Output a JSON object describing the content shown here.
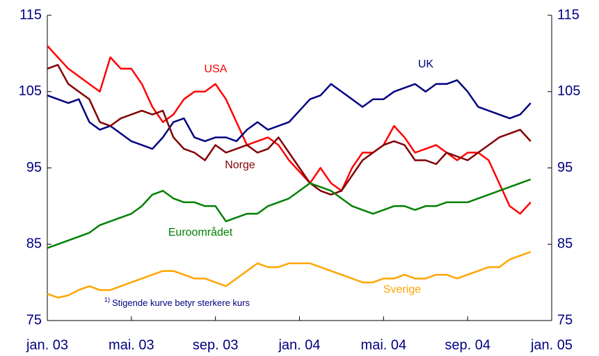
{
  "chart_data": {
    "type": "line",
    "x": [
      0,
      0.5,
      1,
      1.5,
      2,
      2.5,
      3,
      3.5,
      4,
      4.5,
      5,
      5.5,
      6,
      6.5,
      7,
      7.5,
      8,
      8.5,
      9,
      9.5,
      10,
      10.5,
      11,
      11.5,
      12,
      12.5,
      13,
      13.5,
      14,
      14.5,
      15,
      15.5,
      16,
      16.5,
      17,
      17.5,
      18,
      18.5,
      19,
      19.5,
      20,
      20.5,
      21,
      21.5,
      22,
      22.5,
      23
    ],
    "xlim": [
      0,
      24
    ],
    "xticks": [
      {
        "value": 0,
        "label": "jan. 03"
      },
      {
        "value": 4,
        "label": "mai. 03"
      },
      {
        "value": 8,
        "label": "sep. 03"
      },
      {
        "value": 12,
        "label": "jan. 04"
      },
      {
        "value": 16,
        "label": "mai. 04"
      },
      {
        "value": 20,
        "label": "sep. 04"
      },
      {
        "value": 24,
        "label": "jan. 05"
      }
    ],
    "ylim": [
      75,
      115
    ],
    "yticks": [
      75,
      85,
      95,
      105,
      115
    ],
    "y2lim": [
      75,
      115
    ],
    "y2ticks": [
      75,
      85,
      95,
      105,
      115
    ],
    "series": [
      {
        "name": "USA",
        "color": "#ff0000",
        "values": [
          111,
          109.5,
          108,
          107,
          106,
          105,
          109.5,
          108,
          108,
          106,
          103,
          101,
          102,
          104,
          105,
          105,
          106,
          104,
          101,
          98,
          98.5,
          99,
          98,
          96,
          94.5,
          93,
          95,
          93,
          92,
          95,
          97,
          97,
          98,
          100.5,
          99,
          97,
          97.5,
          98,
          97,
          96,
          97,
          97,
          96,
          93,
          90,
          89,
          90.5
        ]
      },
      {
        "name": "UK",
        "color": "#000080",
        "values": [
          104.5,
          104,
          103.5,
          104,
          101,
          100,
          100.5,
          99.5,
          98.5,
          98,
          97.5,
          99,
          101,
          101.5,
          99,
          98.5,
          99,
          99,
          98.5,
          100,
          101,
          100,
          100.5,
          101,
          102.5,
          104,
          104.5,
          106,
          105,
          104,
          103,
          104,
          104,
          105,
          105.5,
          106,
          105,
          106,
          106,
          106.5,
          105,
          103,
          102.5,
          102,
          101.5,
          102,
          103.5
        ]
      },
      {
        "name": "Norge",
        "color": "#800000",
        "values": [
          108,
          108.5,
          106,
          105,
          104,
          101,
          100.5,
          101.5,
          102,
          102.5,
          102,
          102.5,
          99,
          97.5,
          97,
          96,
          98,
          97,
          97.5,
          98,
          97,
          97.5,
          99,
          97,
          95,
          93,
          92,
          91.5,
          92,
          94,
          96,
          97,
          98,
          98.5,
          98,
          96,
          96,
          95.5,
          97,
          96.5,
          96,
          97,
          98,
          99,
          99.5,
          100,
          98.5
        ]
      },
      {
        "name": "Euroområdet",
        "color": "#008000",
        "values": [
          84.5,
          85,
          85.5,
          86,
          86.5,
          87.5,
          88,
          88.5,
          89,
          90,
          91.5,
          92,
          91,
          90.5,
          90.5,
          90,
          90,
          88,
          88.5,
          89,
          89,
          90,
          90.5,
          91,
          92,
          93,
          92.5,
          92,
          91,
          90,
          89.5,
          89,
          89.5,
          90,
          90,
          89.5,
          90,
          90,
          90.5,
          90.5,
          90.5,
          91,
          91.5,
          92,
          92.5,
          93,
          93.5
        ]
      },
      {
        "name": "Sverige",
        "color": "#ffa500",
        "values": [
          78.5,
          78,
          78.3,
          79,
          79.5,
          79,
          79,
          79.5,
          80,
          80.5,
          81,
          81.5,
          81.5,
          81,
          80.5,
          80.5,
          80,
          79.5,
          80.5,
          81.5,
          82.5,
          82,
          82,
          82.5,
          82.5,
          82.5,
          82,
          81.5,
          81,
          80.5,
          80,
          80,
          80.5,
          80.5,
          81,
          80.5,
          80.5,
          81,
          81,
          80.5,
          81,
          81.5,
          82,
          82,
          83,
          83.5,
          84
        ]
      }
    ],
    "annotation": {
      "marker": "1)",
      "text": "Stigende kurve betyr sterkere kurs"
    }
  }
}
